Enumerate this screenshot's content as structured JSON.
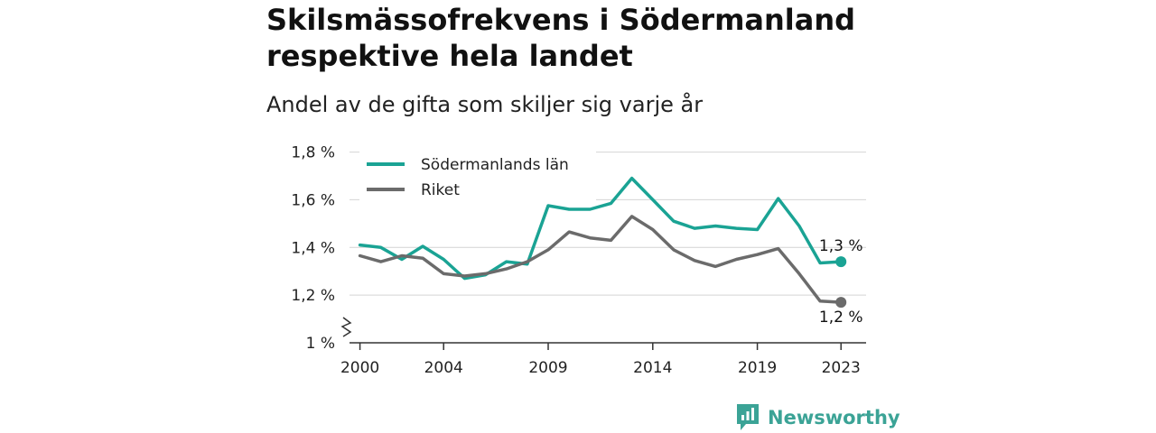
{
  "title": "Skilsmässofrekvens i Södermanland respektive hela landet",
  "subtitle": "Andel av de gifta som skiljer sig varje år",
  "brand": {
    "name": "Newsworthy",
    "color": "#3ba396",
    "icon": "newsworthy-logo-icon"
  },
  "chart_data": {
    "type": "line",
    "title": "Skilsmässofrekvens i Södermanland respektive hela landet",
    "subtitle": "Andel av de gifta som skiljer sig varje år",
    "xlabel": "",
    "ylabel": "",
    "x": [
      2000,
      2001,
      2002,
      2003,
      2004,
      2005,
      2006,
      2007,
      2008,
      2009,
      2010,
      2011,
      2012,
      2013,
      2014,
      2015,
      2016,
      2017,
      2018,
      2019,
      2020,
      2021,
      2022,
      2023
    ],
    "x_ticks": [
      2000,
      2004,
      2009,
      2014,
      2019,
      2023
    ],
    "xlim": [
      1999.5,
      2024.2
    ],
    "ylim": [
      1.0,
      1.84
    ],
    "y_ticks": [
      1.0,
      1.2,
      1.4,
      1.6,
      1.8
    ],
    "y_tick_labels": [
      "1 %",
      "1,2 %",
      "1,4 %",
      "1,6 %",
      "1,8 %"
    ],
    "y_axis_break": true,
    "grid": "horizontal",
    "legend_position": "top-left",
    "series": [
      {
        "name": "Södermanlands län",
        "color": "#1aa394",
        "values": [
          1.41,
          1.4,
          1.35,
          1.405,
          1.35,
          1.27,
          1.285,
          1.34,
          1.33,
          1.575,
          1.56,
          1.56,
          1.585,
          1.69,
          1.6,
          1.51,
          1.48,
          1.49,
          1.48,
          1.475,
          1.605,
          1.49,
          1.335,
          1.34
        ],
        "end_label": "1,3 %"
      },
      {
        "name": "Riket",
        "color": "#6b6b6b",
        "values": [
          1.365,
          1.34,
          1.365,
          1.355,
          1.29,
          1.28,
          1.29,
          1.31,
          1.34,
          1.39,
          1.465,
          1.44,
          1.43,
          1.53,
          1.475,
          1.39,
          1.345,
          1.32,
          1.35,
          1.37,
          1.395,
          1.29,
          1.175,
          1.17
        ],
        "end_label": "1,2 %"
      }
    ]
  }
}
